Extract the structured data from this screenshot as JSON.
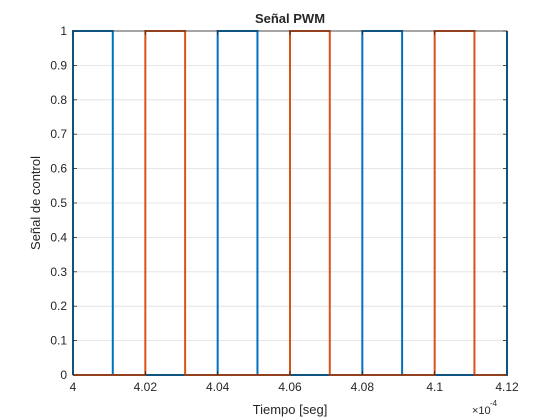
{
  "chart_data": {
    "type": "line",
    "title": "Señal PWM",
    "xlabel": "Tiempo [seg]",
    "ylabel": "Señal de control",
    "x_multiplier": "×10",
    "x_multiplier_exponent": "-4",
    "xlim": [
      4.0,
      4.12
    ],
    "ylim": [
      0,
      1
    ],
    "x_ticks": [
      "4",
      "4.02",
      "4.04",
      "4.06",
      "4.08",
      "4.1",
      "4.12"
    ],
    "x_tick_values": [
      4.0,
      4.02,
      4.04,
      4.06,
      4.08,
      4.1,
      4.12
    ],
    "y_ticks": [
      "0",
      "0.1",
      "0.2",
      "0.3",
      "0.4",
      "0.5",
      "0.6",
      "0.7",
      "0.8",
      "0.9",
      "1"
    ],
    "y_tick_values": [
      0,
      0.1,
      0.2,
      0.3,
      0.4,
      0.5,
      0.6,
      0.7,
      0.8,
      0.9,
      1
    ],
    "grid": true,
    "colors": {
      "series1": "#0072BD",
      "series2": "#D95319"
    },
    "series": [
      {
        "x": [
          4.0,
          4.0,
          4.011,
          4.011,
          4.04,
          4.04,
          4.051,
          4.051,
          4.08,
          4.08,
          4.091,
          4.091,
          4.12,
          4.12
        ],
        "y": [
          0,
          1,
          1,
          0,
          0,
          1,
          1,
          0,
          0,
          1,
          1,
          0,
          0,
          1
        ]
      },
      {
        "x": [
          4.0,
          4.02,
          4.02,
          4.031,
          4.031,
          4.06,
          4.06,
          4.071,
          4.071,
          4.1,
          4.1,
          4.111,
          4.111,
          4.12
        ],
        "y": [
          0,
          0,
          1,
          1,
          0,
          0,
          1,
          1,
          0,
          0,
          1,
          1,
          0,
          0
        ]
      }
    ]
  }
}
